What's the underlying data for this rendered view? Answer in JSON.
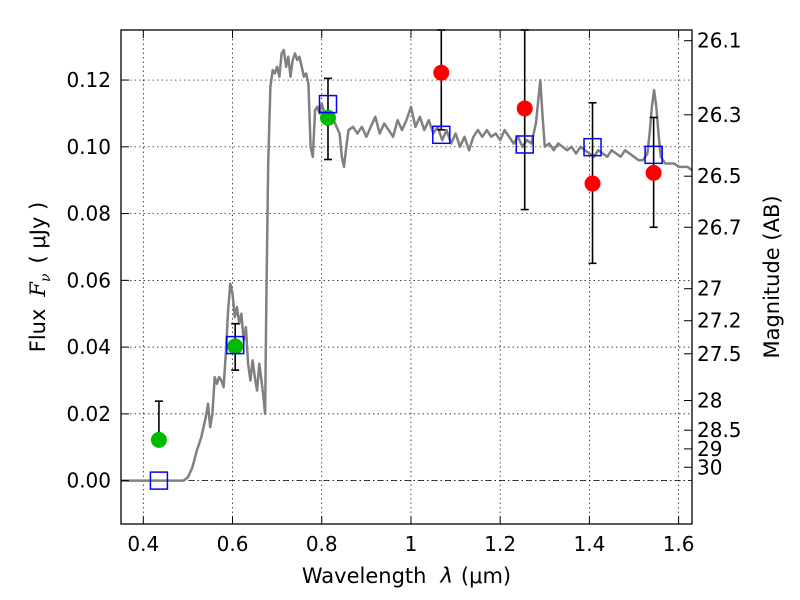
{
  "chart_data": {
    "type": "scatter",
    "xlabel": "Wavelength",
    "xlabel_symbol": "λ",
    "xlabel_unit": "(μm)",
    "ylabel": "Flux",
    "ylabel_symbol": "F",
    "ylabel_symbol_sub": "ν",
    "ylabel_unit": "( μJy )",
    "y2label": "Magnitude (AB)",
    "xlim": [
      0.35,
      1.63
    ],
    "ylim": [
      -0.013,
      0.135
    ],
    "grid": true,
    "x_ticks": [
      {
        "value": 0.4,
        "label": "0.4"
      },
      {
        "value": 0.6,
        "label": "0.6"
      },
      {
        "value": 0.8,
        "label": "0.8"
      },
      {
        "value": 1.0,
        "label": "1"
      },
      {
        "value": 1.2,
        "label": "1.2"
      },
      {
        "value": 1.4,
        "label": "1.4"
      },
      {
        "value": 1.6,
        "label": "1.6"
      }
    ],
    "y_ticks": [
      {
        "value": 0.0,
        "label": "0.00"
      },
      {
        "value": 0.02,
        "label": "0.02"
      },
      {
        "value": 0.04,
        "label": "0.04"
      },
      {
        "value": 0.06,
        "label": "0.06"
      },
      {
        "value": 0.08,
        "label": "0.08"
      },
      {
        "value": 0.1,
        "label": "0.10"
      },
      {
        "value": 0.12,
        "label": "0.12"
      }
    ],
    "y2_ticks": [
      {
        "flux": 0.1318,
        "label": "26.1"
      },
      {
        "flux": 0.1096,
        "label": "26.3"
      },
      {
        "flux": 0.0912,
        "label": "26.5"
      },
      {
        "flux": 0.0759,
        "label": "26.7"
      },
      {
        "flux": 0.0575,
        "label": "27"
      },
      {
        "flux": 0.0479,
        "label": "27.2"
      },
      {
        "flux": 0.038,
        "label": "27.5"
      },
      {
        "flux": 0.024,
        "label": "28"
      },
      {
        "flux": 0.0151,
        "label": "28.5"
      },
      {
        "flux": 0.0095,
        "label": "29"
      },
      {
        "flux": 0.004,
        "label": "30"
      }
    ],
    "zero_line": 0,
    "model_spectrum": {
      "color": "#808080",
      "points": [
        [
          0.35,
          0.0
        ],
        [
          0.4,
          0.0
        ],
        [
          0.45,
          0.0
        ],
        [
          0.49,
          0.0
        ],
        [
          0.5,
          0.001
        ],
        [
          0.51,
          0.004
        ],
        [
          0.52,
          0.009
        ],
        [
          0.53,
          0.013
        ],
        [
          0.54,
          0.019
        ],
        [
          0.545,
          0.023
        ],
        [
          0.55,
          0.016
        ],
        [
          0.555,
          0.02
        ],
        [
          0.56,
          0.031
        ],
        [
          0.565,
          0.029
        ],
        [
          0.57,
          0.031
        ],
        [
          0.575,
          0.03
        ],
        [
          0.58,
          0.028
        ],
        [
          0.585,
          0.038
        ],
        [
          0.59,
          0.051
        ],
        [
          0.595,
          0.059
        ],
        [
          0.6,
          0.056
        ],
        [
          0.605,
          0.049
        ],
        [
          0.61,
          0.052
        ],
        [
          0.615,
          0.047
        ],
        [
          0.62,
          0.05
        ],
        [
          0.625,
          0.042
        ],
        [
          0.63,
          0.046
        ],
        [
          0.635,
          0.035
        ],
        [
          0.64,
          0.03
        ],
        [
          0.645,
          0.036
        ],
        [
          0.65,
          0.031
        ],
        [
          0.655,
          0.027
        ],
        [
          0.66,
          0.035
        ],
        [
          0.665,
          0.03
        ],
        [
          0.67,
          0.024
        ],
        [
          0.673,
          0.02
        ],
        [
          0.676,
          0.055
        ],
        [
          0.68,
          0.095
        ],
        [
          0.685,
          0.118
        ],
        [
          0.69,
          0.123
        ],
        [
          0.695,
          0.122
        ],
        [
          0.7,
          0.124
        ],
        [
          0.705,
          0.121
        ],
        [
          0.71,
          0.128
        ],
        [
          0.715,
          0.129
        ],
        [
          0.72,
          0.124
        ],
        [
          0.725,
          0.127
        ],
        [
          0.73,
          0.121
        ],
        [
          0.735,
          0.126
        ],
        [
          0.74,
          0.128
        ],
        [
          0.745,
          0.126
        ],
        [
          0.75,
          0.127
        ],
        [
          0.755,
          0.124
        ],
        [
          0.76,
          0.121
        ],
        [
          0.765,
          0.122
        ],
        [
          0.77,
          0.119
        ],
        [
          0.775,
          0.1
        ],
        [
          0.78,
          0.097
        ],
        [
          0.785,
          0.111
        ],
        [
          0.79,
          0.112
        ],
        [
          0.795,
          0.11
        ],
        [
          0.8,
          0.113
        ],
        [
          0.81,
          0.108
        ],
        [
          0.82,
          0.11
        ],
        [
          0.83,
          0.107
        ],
        [
          0.84,
          0.104
        ],
        [
          0.845,
          0.097
        ],
        [
          0.85,
          0.094
        ],
        [
          0.855,
          0.1
        ],
        [
          0.86,
          0.105
        ],
        [
          0.87,
          0.106
        ],
        [
          0.88,
          0.104
        ],
        [
          0.89,
          0.106
        ],
        [
          0.9,
          0.103
        ],
        [
          0.91,
          0.106
        ],
        [
          0.92,
          0.109
        ],
        [
          0.93,
          0.104
        ],
        [
          0.94,
          0.107
        ],
        [
          0.95,
          0.105
        ],
        [
          0.96,
          0.103
        ],
        [
          0.97,
          0.108
        ],
        [
          0.98,
          0.105
        ],
        [
          0.99,
          0.108
        ],
        [
          1.0,
          0.112
        ],
        [
          1.01,
          0.106
        ],
        [
          1.02,
          0.109
        ],
        [
          1.03,
          0.105
        ],
        [
          1.04,
          0.108
        ],
        [
          1.05,
          0.104
        ],
        [
          1.06,
          0.106
        ],
        [
          1.07,
          0.102
        ],
        [
          1.08,
          0.105
        ],
        [
          1.09,
          0.101
        ],
        [
          1.1,
          0.104
        ],
        [
          1.11,
          0.1
        ],
        [
          1.12,
          0.103
        ],
        [
          1.13,
          0.099
        ],
        [
          1.14,
          0.103
        ],
        [
          1.15,
          0.105
        ],
        [
          1.16,
          0.103
        ],
        [
          1.17,
          0.105
        ],
        [
          1.18,
          0.103
        ],
        [
          1.19,
          0.104
        ],
        [
          1.2,
          0.102
        ],
        [
          1.21,
          0.105
        ],
        [
          1.22,
          0.103
        ],
        [
          1.23,
          0.101
        ],
        [
          1.24,
          0.103
        ],
        [
          1.25,
          0.1
        ],
        [
          1.26,
          0.102
        ],
        [
          1.27,
          0.101
        ],
        [
          1.28,
          0.107
        ],
        [
          1.29,
          0.12
        ],
        [
          1.295,
          0.109
        ],
        [
          1.3,
          0.1
        ],
        [
          1.31,
          0.101
        ],
        [
          1.32,
          0.099
        ],
        [
          1.33,
          0.101
        ],
        [
          1.34,
          0.1
        ],
        [
          1.35,
          0.099
        ],
        [
          1.36,
          0.1
        ],
        [
          1.37,
          0.098
        ],
        [
          1.38,
          0.1
        ],
        [
          1.39,
          0.099
        ],
        [
          1.4,
          0.098
        ],
        [
          1.41,
          0.097
        ],
        [
          1.42,
          0.099
        ],
        [
          1.43,
          0.098
        ],
        [
          1.44,
          0.097
        ],
        [
          1.45,
          0.099
        ],
        [
          1.46,
          0.098
        ],
        [
          1.47,
          0.097
        ],
        [
          1.48,
          0.099
        ],
        [
          1.49,
          0.098
        ],
        [
          1.5,
          0.097
        ],
        [
          1.51,
          0.096
        ],
        [
          1.52,
          0.096
        ],
        [
          1.53,
          0.098
        ],
        [
          1.535,
          0.104
        ],
        [
          1.54,
          0.112
        ],
        [
          1.545,
          0.117
        ],
        [
          1.55,
          0.112
        ],
        [
          1.555,
          0.104
        ],
        [
          1.56,
          0.097
        ],
        [
          1.57,
          0.095
        ],
        [
          1.58,
          0.095
        ],
        [
          1.59,
          0.095
        ],
        [
          1.6,
          0.094
        ],
        [
          1.61,
          0.094
        ],
        [
          1.62,
          0.094
        ],
        [
          1.63,
          0.093
        ]
      ]
    },
    "series": [
      {
        "marker": "circle",
        "color": "#00bb00",
        "points": [
          {
            "x": 0.435,
            "y": 0.0122,
            "yerr_low": 0.0122,
            "yerr_high": 0.0238
          },
          {
            "x": 0.606,
            "y": 0.0402,
            "yerr_low": 0.0331,
            "yerr_high": 0.047
          },
          {
            "x": 0.814,
            "y": 0.1087,
            "yerr_low": 0.0962,
            "yerr_high": 0.1205
          }
        ]
      },
      {
        "marker": "circle",
        "color": "#ff0000",
        "points": [
          {
            "x": 1.068,
            "y": 0.1222,
            "yerr_low": 0.1051,
            "yerr_high": 0.135
          },
          {
            "x": 1.255,
            "y": 0.1115,
            "yerr_low": 0.0812,
            "yerr_high": 0.135
          },
          {
            "x": 1.407,
            "y": 0.089,
            "yerr_low": 0.0651,
            "yerr_high": 0.1132
          },
          {
            "x": 1.544,
            "y": 0.0922,
            "yerr_low": 0.0759,
            "yerr_high": 0.1088
          }
        ]
      },
      {
        "marker": "square",
        "color": "#0000ff",
        "points": [
          {
            "x": 0.435,
            "y": 0.0
          },
          {
            "x": 0.606,
            "y": 0.0406
          },
          {
            "x": 0.814,
            "y": 0.1128
          },
          {
            "x": 1.068,
            "y": 0.1036
          },
          {
            "x": 1.255,
            "y": 0.1007
          },
          {
            "x": 1.407,
            "y": 0.0999
          },
          {
            "x": 1.544,
            "y": 0.0976
          }
        ]
      }
    ]
  }
}
